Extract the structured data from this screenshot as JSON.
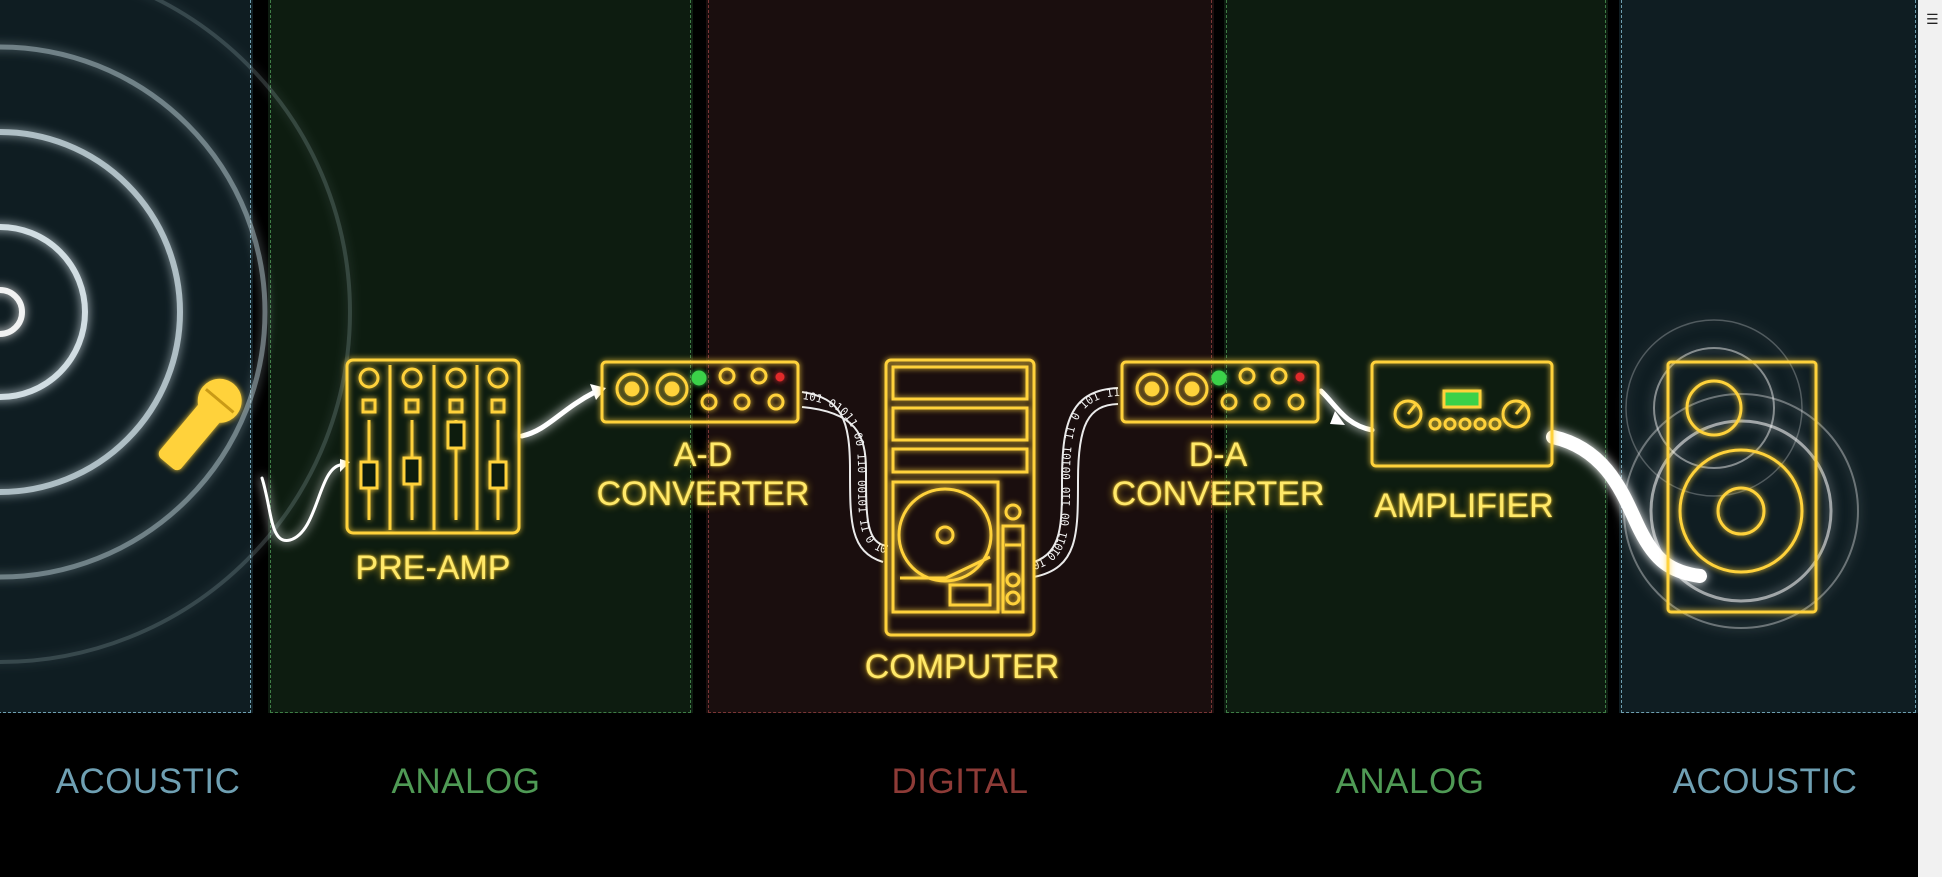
{
  "zones": [
    {
      "label": "ACOUSTIC",
      "kind": "acoustic",
      "color": "#6fa0b3"
    },
    {
      "label": "ANALOG",
      "kind": "analog",
      "color": "#4f9a55"
    },
    {
      "label": "DIGITAL",
      "kind": "digital",
      "color": "#8e3b37"
    },
    {
      "label": "ANALOG",
      "kind": "analog",
      "color": "#4f9a55"
    },
    {
      "label": "ACOUSTIC",
      "kind": "acoustic",
      "color": "#6fa0b3"
    }
  ],
  "devices": {
    "preamp": "PRE-AMP",
    "ad_line1": "A-D",
    "ad_line2": "CONVERTER",
    "computer": "COMPUTER",
    "da_line1": "D-A",
    "da_line2": "CONVERTER",
    "amplifier": "AMPLIFIER"
  },
  "binary_left": "101 01011 00 110 00101 11 0 101 11",
  "binary_right": "01 01011 00 110 00101 11 0 101 11 00",
  "icons": [
    "microphone-icon",
    "mixer-icon",
    "converter-icon",
    "computer-icon",
    "amplifier-icon",
    "speaker-icon",
    "sound-waves-icon"
  ],
  "colors": {
    "device": "#ffd23a",
    "cable": "#ffffff"
  },
  "window": {
    "menu_icon": "☰"
  }
}
